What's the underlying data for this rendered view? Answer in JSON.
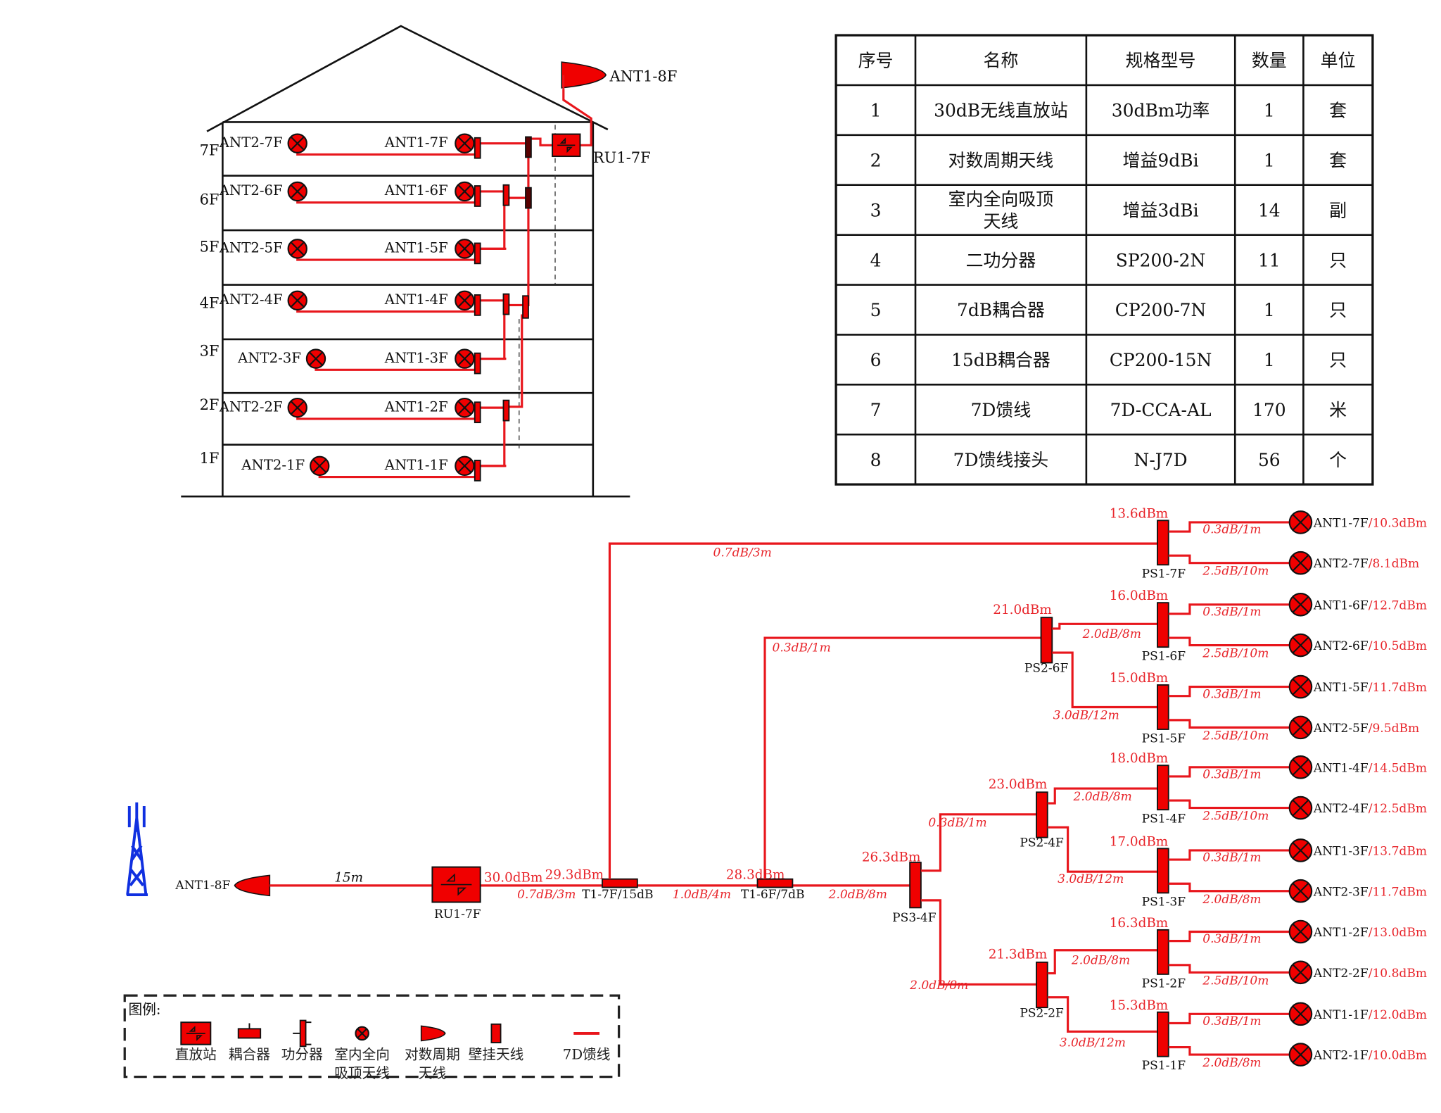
{
  "colors": {
    "feeder": "#e8161c",
    "device": "#f00000",
    "outline": "#111111",
    "tower": "#1030e0",
    "level_text": "#e8252b"
  },
  "building": {
    "roof_antenna": "ANT1-8F",
    "repeater": "RU1-7F",
    "floors": [
      {
        "label": "7F",
        "ant2": "ANT2-7F",
        "ant1": "ANT1-7F"
      },
      {
        "label": "6F",
        "ant2": "ANT2-6F",
        "ant1": "ANT1-6F"
      },
      {
        "label": "5F",
        "ant2": "ANT2-5F",
        "ant1": "ANT1-5F"
      },
      {
        "label": "4F",
        "ant2": "ANT2-4F",
        "ant1": "ANT1-4F"
      },
      {
        "label": "3F",
        "ant2": "ANT2-3F",
        "ant1": "ANT1-3F"
      },
      {
        "label": "2F",
        "ant2": "ANT2-2F",
        "ant1": "ANT1-2F"
      },
      {
        "label": "1F",
        "ant2": "ANT2-1F",
        "ant1": "ANT1-1F"
      }
    ]
  },
  "table": {
    "headers": [
      "序号",
      "名称",
      "规格型号",
      "数量",
      "单位"
    ],
    "rows": [
      [
        "1",
        "30dB无线直放站",
        "30dBm功率",
        "1",
        "套"
      ],
      [
        "2",
        "对数周期天线",
        "增益9dBi",
        "1",
        "套"
      ],
      [
        "3",
        "室内全向吸顶\n天线",
        "增益3dBi",
        "14",
        "副"
      ],
      [
        "4",
        "二功分器",
        "SP200-2N",
        "11",
        "只"
      ],
      [
        "5",
        "7dB耦合器",
        "CP200-7N",
        "1",
        "只"
      ],
      [
        "6",
        "15dB耦合器",
        "CP200-15N",
        "1",
        "只"
      ],
      [
        "7",
        "7D馈线",
        "7D-CCA-AL",
        "170",
        "米"
      ],
      [
        "8",
        "7D馈线接头",
        "N-J7D",
        "56",
        "个"
      ]
    ]
  },
  "system": {
    "donor_antenna": "ANT1-8F",
    "donor_cable": "15m",
    "repeater": {
      "name": "RU1-7F",
      "output": "30.0dBm"
    },
    "couplers": [
      {
        "name": "T1-7F/15dB",
        "in_loss": "0.7dB/3m",
        "level": "29.3dBm",
        "branch_loss": "0.7dB/3m"
      },
      {
        "name": "T1-6F/7dB",
        "in_loss": "1.0dB/4m",
        "level": "28.3dBm",
        "branch_loss": "0.3dB/1m"
      }
    ],
    "ps3": {
      "name": "PS3-4F",
      "level": "26.3dBm",
      "in_loss": "2.0dB/8m"
    },
    "ps2": [
      {
        "name": "PS2-6F",
        "level": "21.0dBm"
      },
      {
        "name": "PS2-4F",
        "level": "23.0dBm",
        "in_loss": "0.3dB/1m"
      },
      {
        "name": "PS2-2F",
        "level": "21.3dBm",
        "in_loss": "2.0dB/8m"
      }
    ],
    "ps1": [
      {
        "name": "PS1-7F",
        "level": "13.6dBm",
        "in_loss": "",
        "outputs": [
          {
            "loss": "0.3dB/1m",
            "ant": "ANT1-7F",
            "rx": "/10.3dBm"
          },
          {
            "loss": "2.5dB/10m",
            "ant": "ANT2-7F",
            "rx": "/8.1dBm"
          }
        ]
      },
      {
        "name": "PS1-6F",
        "level": "16.0dBm",
        "in_loss": "2.0dB/8m",
        "outputs": [
          {
            "loss": "0.3dB/1m",
            "ant": "ANT1-6F",
            "rx": "/12.7dBm"
          },
          {
            "loss": "2.5dB/10m",
            "ant": "ANT2-6F",
            "rx": "/10.5dBm"
          }
        ]
      },
      {
        "name": "PS1-5F",
        "level": "15.0dBm",
        "in_loss": "3.0dB/12m",
        "outputs": [
          {
            "loss": "0.3dB/1m",
            "ant": "ANT1-5F",
            "rx": "/11.7dBm"
          },
          {
            "loss": "2.5dB/10m",
            "ant": "ANT2-5F",
            "rx": "/9.5dBm"
          }
        ]
      },
      {
        "name": "PS1-4F",
        "level": "18.0dBm",
        "in_loss": "2.0dB/8m",
        "outputs": [
          {
            "loss": "0.3dB/1m",
            "ant": "ANT1-4F",
            "rx": "/14.5dBm"
          },
          {
            "loss": "2.5dB/10m",
            "ant": "ANT2-4F",
            "rx": "/12.5dBm"
          }
        ]
      },
      {
        "name": "PS1-3F",
        "level": "17.0dBm",
        "in_loss": "3.0dB/12m",
        "outputs": [
          {
            "loss": "0.3dB/1m",
            "ant": "ANT1-3F",
            "rx": "/13.7dBm"
          },
          {
            "loss": "2.0dB/8m",
            "ant": "ANT2-3F",
            "rx": "/11.7dBm"
          }
        ]
      },
      {
        "name": "PS1-2F",
        "level": "16.3dBm",
        "in_loss": "2.0dB/8m",
        "outputs": [
          {
            "loss": "0.3dB/1m",
            "ant": "ANT1-2F",
            "rx": "/13.0dBm"
          },
          {
            "loss": "2.5dB/10m",
            "ant": "ANT2-2F",
            "rx": "/10.8dBm"
          }
        ]
      },
      {
        "name": "PS1-1F",
        "level": "15.3dBm",
        "in_loss": "3.0dB/12m",
        "outputs": [
          {
            "loss": "0.3dB/1m",
            "ant": "ANT1-1F",
            "rx": "/12.0dBm"
          },
          {
            "loss": "2.0dB/8m",
            "ant": "ANT2-1F",
            "rx": "/10.0dBm"
          }
        ]
      }
    ]
  },
  "legend": {
    "title": "图例:",
    "items": [
      {
        "icon": "repeater-icon",
        "label": "直放站"
      },
      {
        "icon": "coupler-icon",
        "label": "耦合器"
      },
      {
        "icon": "splitter-icon",
        "label": "功分器"
      },
      {
        "icon": "ceiling-antenna-icon",
        "label": "室内全向\n吸顶天线"
      },
      {
        "icon": "log-periodic-antenna-icon",
        "label": "对数周期\n天线"
      },
      {
        "icon": "wall-antenna-icon",
        "label": "壁挂天线"
      },
      {
        "icon": "feeder-line-icon",
        "label": "7D馈线"
      }
    ]
  }
}
